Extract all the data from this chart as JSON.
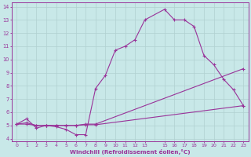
{
  "xlabel": "Windchill (Refroidissement éolien,°C)",
  "xlim": [
    -0.5,
    23.5
  ],
  "ylim": [
    3.8,
    14.3
  ],
  "bg_color": "#c8e8e8",
  "line_color": "#993399",
  "grid_color": "#b0d0d0",
  "line1_x": [
    0,
    1,
    2,
    3,
    4,
    5,
    6,
    7,
    8,
    9,
    10,
    11,
    12,
    13,
    15,
    16,
    17,
    18,
    19,
    20,
    21,
    22,
    23
  ],
  "line1_y": [
    5.1,
    5.5,
    4.8,
    5.0,
    4.9,
    4.7,
    4.3,
    4.3,
    7.8,
    8.8,
    10.7,
    11.0,
    11.5,
    13.0,
    13.8,
    13.0,
    13.0,
    12.5,
    10.3,
    9.6,
    8.5,
    7.7,
    6.5
  ],
  "line2_x": [
    0,
    1,
    2,
    3,
    4,
    5,
    6,
    7,
    8,
    23
  ],
  "line2_y": [
    5.1,
    5.2,
    5.0,
    5.0,
    5.0,
    5.0,
    5.0,
    5.1,
    5.1,
    9.3
  ],
  "line3_x": [
    0,
    1,
    2,
    3,
    4,
    5,
    6,
    7,
    8,
    23
  ],
  "line3_y": [
    5.1,
    5.1,
    5.0,
    5.0,
    5.0,
    5.0,
    5.0,
    5.05,
    5.05,
    6.5
  ]
}
